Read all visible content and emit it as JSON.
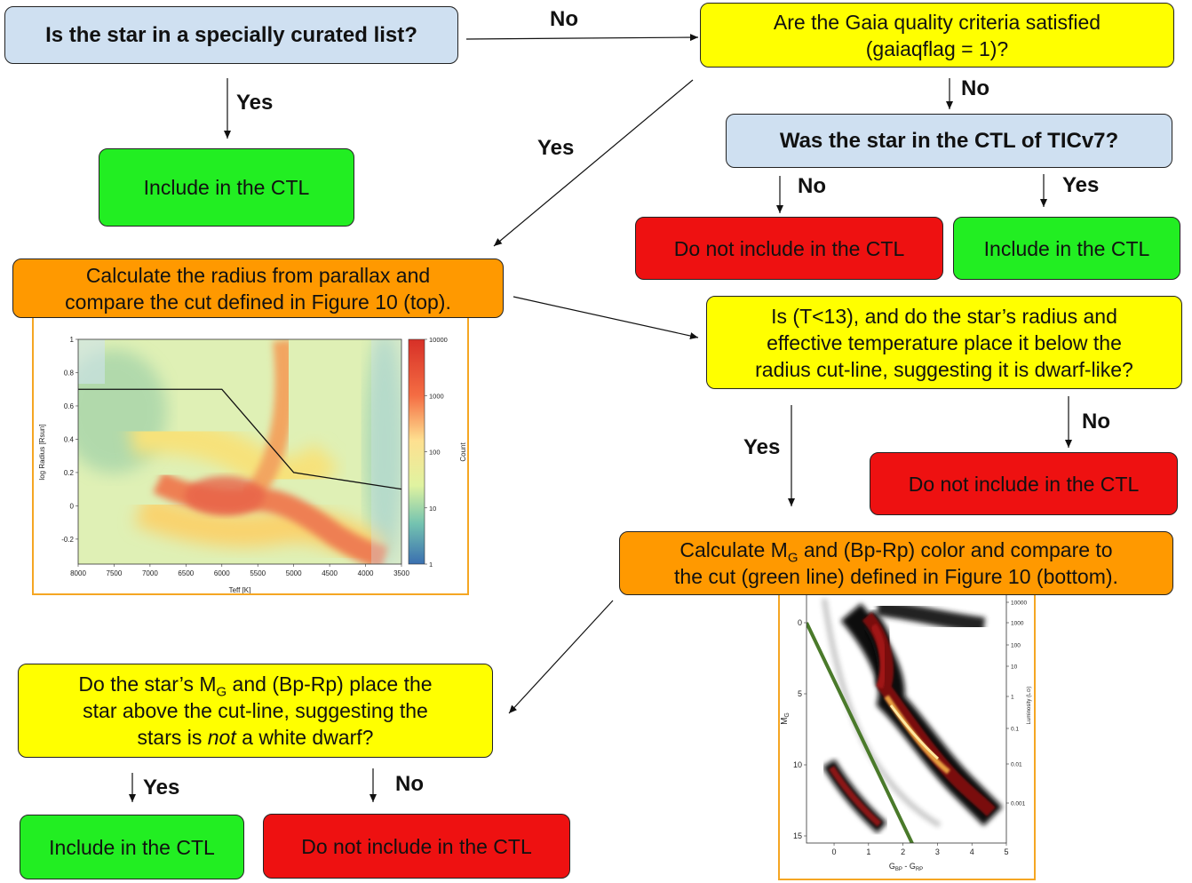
{
  "boxes": {
    "q_curated": "Is the star in a specially curated list?",
    "q_gaia_1": "Are the Gaia quality criteria satisfied",
    "q_gaia_2": "(gaiaqflag = 1)?",
    "r_include_curated": "Include in the CTL",
    "q_ticv7": "Was the star in the CTL of TICv7?",
    "r_not_include_ticv7": "Do not include in the CTL",
    "r_include_ticv7": "Include in the CTL",
    "calc_radius_1": "Calculate the radius from parallax and",
    "calc_radius_2": "compare the cut defined in Figure 10 (top).",
    "q_dwarf_1": "Is (T<13), and do the star’s radius and",
    "q_dwarf_2": "effective temperature place it below the",
    "q_dwarf_3": "radius cut-line, suggesting it is dwarf-like?",
    "r_not_include_dwarf": "Do not include in the CTL",
    "calc_mg_1a": "Calculate M",
    "calc_mg_1sub": "G",
    "calc_mg_1b": " and (Bp-Rp) color and compare to",
    "calc_mg_2": "the cut (green line) defined in Figure 10 (bottom).",
    "q_wd_1a": "Do the star’s M",
    "q_wd_1sub": "G",
    "q_wd_1b": " and (Bp-Rp) place the",
    "q_wd_2": "star above the cut-line, suggesting the",
    "q_wd_3a": "stars is ",
    "q_wd_3em": "not",
    "q_wd_3b": " a white dwarf?",
    "r_include_wd": "Include in the CTL",
    "r_not_include_wd": "Do not include in the CTL"
  },
  "labels": {
    "curated_no": "No",
    "curated_yes": "Yes",
    "gaia_yes": "Yes",
    "gaia_no": "No",
    "ticv7_no": "No",
    "ticv7_yes": "Yes",
    "dwarf_yes": "Yes",
    "dwarf_no": "No",
    "wd_yes": "Yes",
    "wd_no": "No"
  },
  "colors": {
    "blue": "#cfe0f1",
    "yellow": "#ffff00",
    "green": "#22ee22",
    "red": "#ee1111",
    "orange": "#ff9900"
  },
  "chart_data": [
    {
      "type": "heatmap",
      "xlabel": "Teff [K]",
      "ylabel": "log Radius [Rsun]",
      "colorbar_label": "Count",
      "x_ticks": [
        "8000",
        "7500",
        "7000",
        "6500",
        "6000",
        "5500",
        "5000",
        "4500",
        "4000",
        "3500"
      ],
      "y_ticks": [
        "1",
        "0.8",
        "0.6",
        "0.4",
        "0.2",
        "0",
        "-0.2"
      ],
      "colorbar_ticks": [
        "10000",
        "1000",
        "100",
        "10",
        "1"
      ],
      "xlim": [
        8000,
        3500
      ],
      "ylim": [
        -0.35,
        1.0
      ],
      "colorbar_scale": "log",
      "cut_line": {
        "x": [
          8000,
          6000,
          5000,
          3500
        ],
        "y": [
          0.7,
          0.7,
          0.2,
          0.1
        ]
      }
    },
    {
      "type": "scatter",
      "xlabel_main": "G",
      "xlabel_sub1": "BP",
      "xlabel_mid": " - G",
      "xlabel_sub2": "RP",
      "ylabel_main": "M",
      "ylabel_sub": "G",
      "right_label": "Luminosity (L⊙)",
      "x_ticks": [
        "0",
        "1",
        "2",
        "3",
        "4",
        "5"
      ],
      "y_ticks": [
        "0",
        "5",
        "10",
        "15"
      ],
      "right_ticks": [
        "10000",
        "1000",
        "100",
        "10",
        "1",
        "0.1",
        "0.01",
        "0.001"
      ],
      "xlim": [
        -0.8,
        5.0
      ],
      "ylim": [
        15.5,
        -2.0
      ],
      "cut_line": {
        "color": "#4a7a2a",
        "x": [
          -0.8,
          2.4
        ],
        "y": [
          0,
          16.2
        ]
      }
    }
  ]
}
